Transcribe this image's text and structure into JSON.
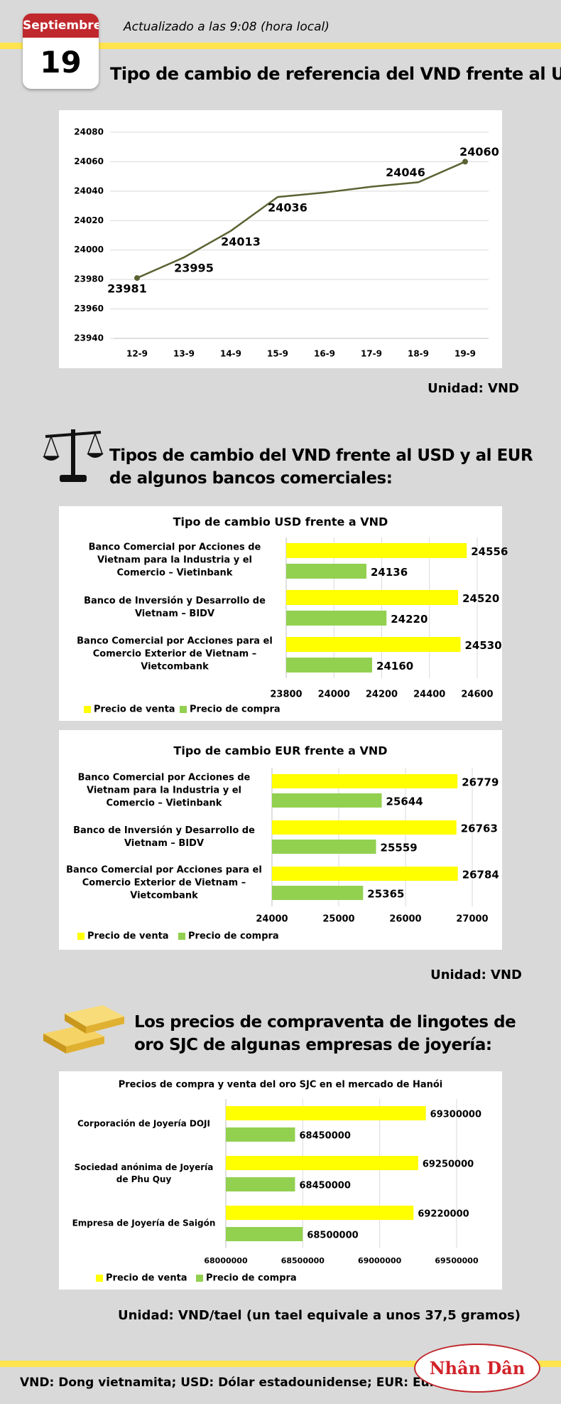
{
  "header": {
    "month": "Septiembre",
    "day": "19",
    "updated": "Actualizado a las 9:08 (hora local)"
  },
  "sections": [
    {
      "title": "Tipo de cambio de referencia del VND frente al USD:",
      "unit": "Unidad: VND"
    },
    {
      "title": "Tipos de cambio del VND frente al USD y al EUR de algunos bancos comerciales:",
      "unit": "Unidad: VND"
    },
    {
      "title": "Los precios de compraventa de lingotes de oro SJC de algunas empresas de joyería:",
      "unit": "Unidad: VND/tael (un tael equivale a unos 37,5 gramos)"
    }
  ],
  "chart_data": [
    {
      "type": "line",
      "categories": [
        "12-9",
        "13-9",
        "14-9",
        "15-9",
        "16-9",
        "17-9",
        "18-9",
        "19-9"
      ],
      "values": [
        23981,
        23995,
        24013,
        24036,
        24039,
        24043,
        24046,
        24060
      ],
      "value_labels": [
        "23981",
        "23995",
        "24013",
        "24036",
        null,
        null,
        "24046",
        "24060"
      ],
      "color": "#5a6332",
      "ylim": [
        23940,
        24080
      ],
      "yticks": [
        23940,
        23960,
        23980,
        24000,
        24020,
        24040,
        24060,
        24080
      ],
      "grid": true
    },
    {
      "type": "barh",
      "title": "Tipo de cambio USD frente a VND",
      "categories": [
        "Banco Comercial por Acciones de Vietnam para la Industria y el Comercio – Vietinbank",
        "Banco de Inversión y Desarrollo de Vietnam – BIDV",
        "Banco Comercial por Acciones para el Comercio Exterior de Vietnam – Vietcombank"
      ],
      "series": [
        {
          "name": "Precio de venta",
          "color": "#ffff00",
          "values": [
            24556,
            24520,
            24530
          ]
        },
        {
          "name": "Precio de compra",
          "color": "#92d050",
          "values": [
            24136,
            24220,
            24160
          ]
        }
      ],
      "xlim": [
        23800,
        24600
      ],
      "xticks": [
        23800,
        24000,
        24200,
        24400,
        24600
      ],
      "grid": true,
      "legend": "bottom"
    },
    {
      "type": "barh",
      "title": "Tipo de cambio EUR frente a VND",
      "categories": [
        "Banco Comercial por Acciones de Vietnam para la Industria y el Comercio – Vietinbank",
        "Banco de Inversión y Desarrollo de Vietnam – BIDV",
        "Banco Comercial por Acciones para el Comercio Exterior de Vietnam – Vietcombank"
      ],
      "series": [
        {
          "name": "Precio de venta",
          "color": "#ffff00",
          "values": [
            26779,
            26763,
            26784
          ]
        },
        {
          "name": "Precio de compra",
          "color": "#92d050",
          "values": [
            25644,
            25559,
            25365
          ]
        }
      ],
      "xlim": [
        24000,
        27000
      ],
      "xticks": [
        24000,
        25000,
        26000,
        27000
      ],
      "grid": true,
      "legend": "bottom"
    },
    {
      "type": "barh",
      "title": "Precios de compra y venta del oro SJC en el mercado de Hanói",
      "categories": [
        "Corporación de Joyería DOJI",
        "Sociedad anónima de Joyería de Phu Quy",
        "Empresa de Joyería de Saigón"
      ],
      "series": [
        {
          "name": "Precio de venta",
          "color": "#ffff00",
          "values": [
            69300000,
            69250000,
            69220000
          ]
        },
        {
          "name": "Precio de compra",
          "color": "#92d050",
          "values": [
            68450000,
            68450000,
            68500000
          ]
        }
      ],
      "xlim": [
        68000000,
        69500000
      ],
      "xticks": [
        68000000,
        68500000,
        69000000,
        69500000
      ],
      "grid": true,
      "legend": "bottom"
    }
  ],
  "footer": {
    "note": "VND: Dong vietnamita; USD: Dólar estadounidense; EUR: Euro",
    "logo": "Nhân Dân"
  }
}
